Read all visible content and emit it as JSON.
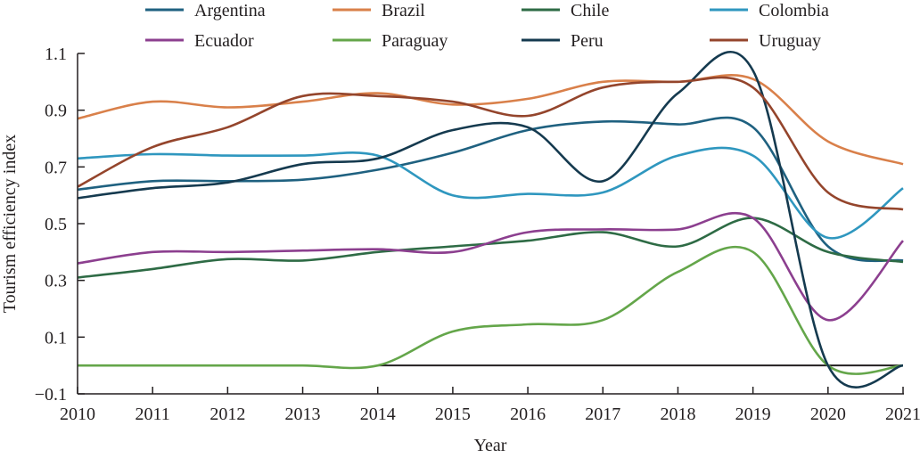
{
  "chart_data": {
    "type": "line",
    "title": "",
    "xlabel": "Year",
    "ylabel": "Tourism efficiency index",
    "x": [
      2010,
      2011,
      2012,
      2013,
      2014,
      2015,
      2016,
      2017,
      2018,
      2019,
      2020,
      2021
    ],
    "x_tick_labels": [
      "2010",
      "2011",
      "2012",
      "2013",
      "2014",
      "2015",
      "2016",
      "2017",
      "2018",
      "2019",
      "2020",
      "2021"
    ],
    "xlim": [
      2010,
      2021
    ],
    "ylim": [
      -0.1,
      1.1
    ],
    "y_ticks": [
      -0.1,
      0.1,
      0.3,
      0.5,
      0.7,
      0.9,
      1.1
    ],
    "y_tick_labels": [
      "−0.1",
      "0.1",
      "0.3",
      "0.5",
      "0.7",
      "0.9",
      "1.1"
    ],
    "grid": false,
    "legend_position": "top",
    "reference_line": {
      "value": 0,
      "from": 2014,
      "to": 2021,
      "color": "#231f20"
    },
    "series": [
      {
        "name": "Argentina",
        "color": "#1f6180",
        "values": [
          0.62,
          0.65,
          0.65,
          0.655,
          0.69,
          0.75,
          0.83,
          0.86,
          0.85,
          0.84,
          0.42,
          0.37
        ]
      },
      {
        "name": "Brazil",
        "color": "#d9804a",
        "values": [
          0.87,
          0.93,
          0.91,
          0.93,
          0.96,
          0.92,
          0.94,
          1.0,
          1.0,
          1.01,
          0.79,
          0.71
        ]
      },
      {
        "name": "Chile",
        "color": "#2e6b45",
        "values": [
          0.31,
          0.34,
          0.375,
          0.37,
          0.4,
          0.42,
          0.44,
          0.47,
          0.42,
          0.52,
          0.4,
          0.365
        ]
      },
      {
        "name": "Colombia",
        "color": "#2f97bf",
        "values": [
          0.73,
          0.745,
          0.74,
          0.74,
          0.74,
          0.6,
          0.605,
          0.61,
          0.74,
          0.74,
          0.45,
          0.625
        ]
      },
      {
        "name": "Ecuador",
        "color": "#8c3f8f",
        "values": [
          0.36,
          0.4,
          0.4,
          0.405,
          0.41,
          0.4,
          0.47,
          0.48,
          0.48,
          0.52,
          0.16,
          0.44
        ]
      },
      {
        "name": "Paraguay",
        "color": "#64a64a",
        "values": [
          0.0,
          0.0,
          0.0,
          0.0,
          0.0,
          0.12,
          0.145,
          0.16,
          0.33,
          0.4,
          0.0,
          0.0
        ]
      },
      {
        "name": "Peru",
        "color": "#153a4f",
        "values": [
          0.59,
          0.625,
          0.645,
          0.71,
          0.73,
          0.83,
          0.84,
          0.65,
          0.96,
          1.04,
          0.0,
          0.0
        ]
      },
      {
        "name": "Uruguay",
        "color": "#94452c",
        "values": [
          0.63,
          0.77,
          0.84,
          0.95,
          0.95,
          0.93,
          0.88,
          0.98,
          1.0,
          0.98,
          0.61,
          0.55
        ]
      }
    ]
  }
}
